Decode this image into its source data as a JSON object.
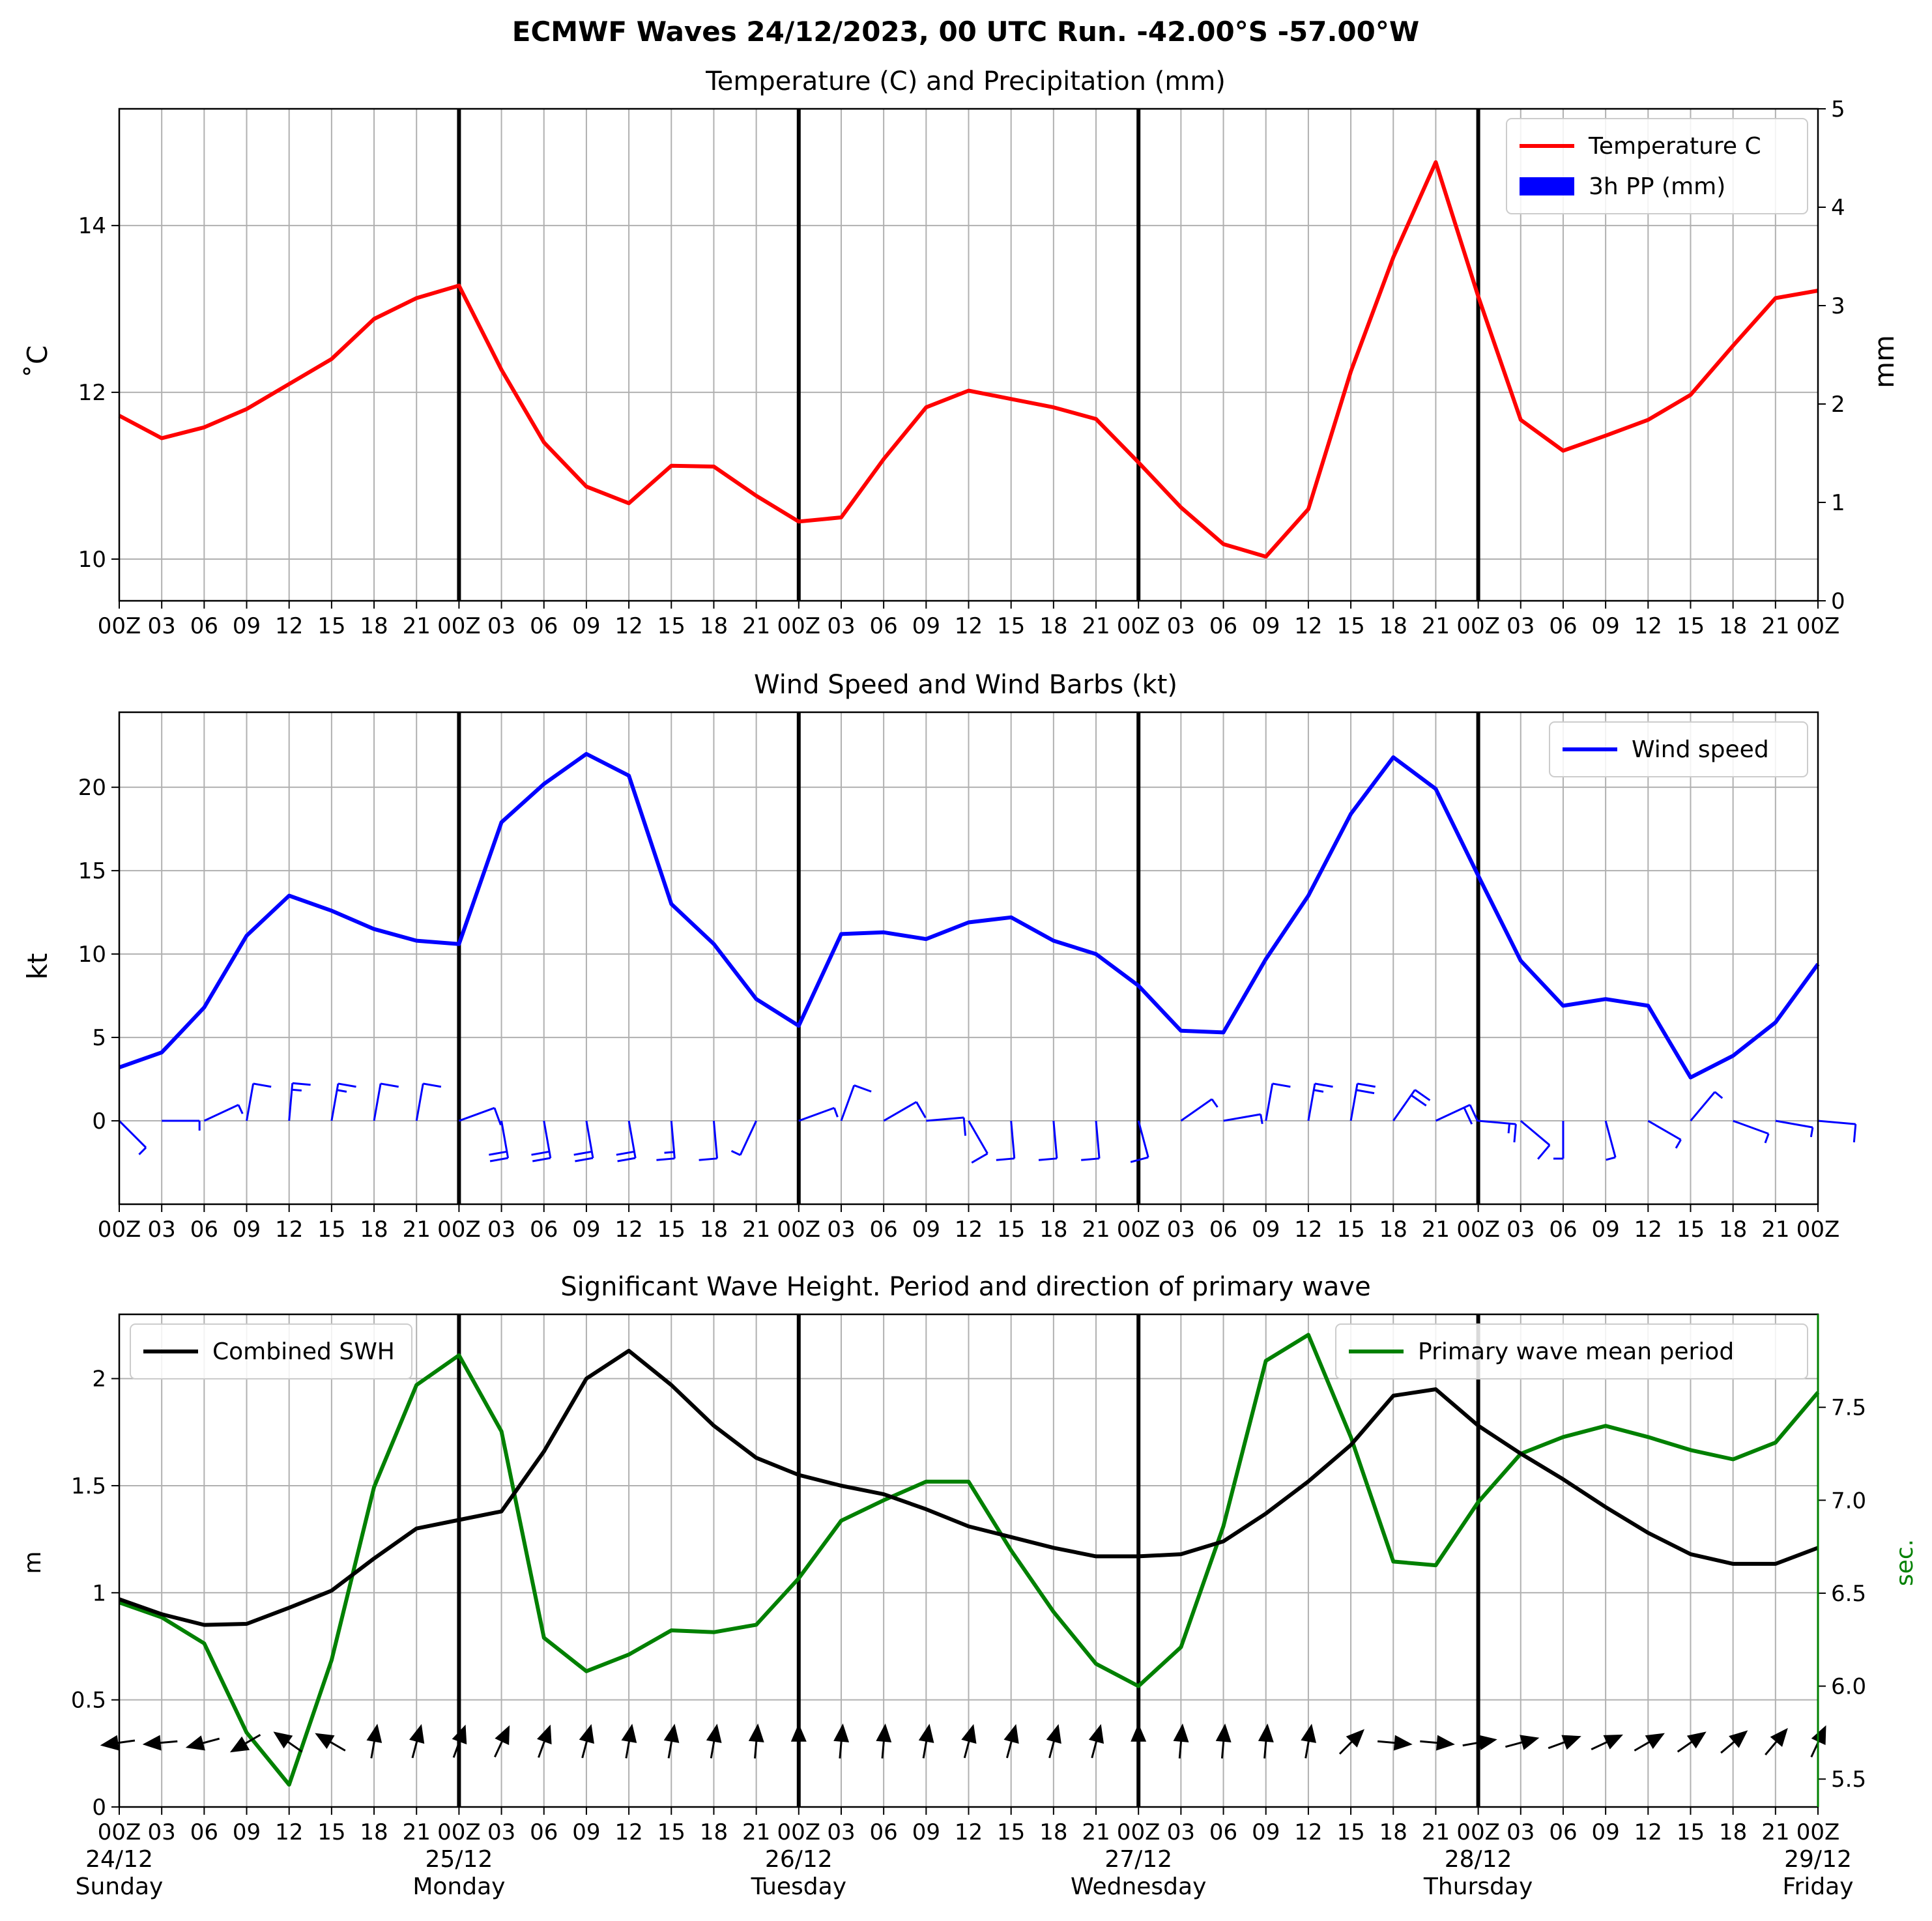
{
  "suptitle": "ECMWF Waves 24/12/2023, 00 UTC Run. -42.00°S -57.00°W",
  "time_ticks": [
    "00Z",
    "03",
    "06",
    "09",
    "12",
    "15",
    "18",
    "21",
    "00Z",
    "03",
    "06",
    "09",
    "12",
    "15",
    "18",
    "21",
    "00Z",
    "03",
    "06",
    "09",
    "12",
    "15",
    "18",
    "21",
    "00Z",
    "03",
    "06",
    "09",
    "12",
    "15",
    "18",
    "21",
    "00Z",
    "03",
    "06",
    "09",
    "12",
    "15",
    "18",
    "21",
    "00Z"
  ],
  "day_labels": [
    {
      "date": "24/12",
      "weekday": "Sunday"
    },
    {
      "date": "25/12",
      "weekday": "Monday"
    },
    {
      "date": "26/12",
      "weekday": "Tuesday"
    },
    {
      "date": "27/12",
      "weekday": "Wednesday"
    },
    {
      "date": "28/12",
      "weekday": "Thursday"
    },
    {
      "date": "29/12",
      "weekday": "Friday"
    }
  ],
  "colors": {
    "temperature": "#ff0000",
    "precip": "#0000ff",
    "wind": "#0000ff",
    "swh": "#000000",
    "period": "#008000",
    "grid": "#b0b0b0"
  },
  "chart_data": [
    {
      "type": "line",
      "title": "Temperature (C) and Precipitation (mm)",
      "ylabel": "$^\\circ$C",
      "ylabel_display": "˚C",
      "y2label": "mm",
      "ylim": [
        9.5,
        15.4
      ],
      "y2lim": [
        0,
        5
      ],
      "yticks": [
        10,
        12,
        14
      ],
      "y2ticks": [
        0,
        1,
        2,
        3,
        4,
        5
      ],
      "legend": {
        "position": "top-right",
        "entries": [
          "Temperature C",
          "3h PP (mm)"
        ]
      },
      "series": [
        {
          "name": "Temperature C",
          "values": [
            11.72,
            11.45,
            11.58,
            11.8,
            12.1,
            12.4,
            12.88,
            13.13,
            13.28,
            12.27,
            11.4,
            10.87,
            10.67,
            11.12,
            11.11,
            10.76,
            10.45,
            10.5,
            11.2,
            11.82,
            12.02,
            11.92,
            11.82,
            11.68,
            11.16,
            10.62,
            10.18,
            10.03,
            10.6,
            12.25,
            13.62,
            14.76,
            13.15,
            11.67,
            11.3,
            11.48,
            11.67,
            11.97,
            12.56,
            13.13,
            13.22
          ]
        },
        {
          "name": "3h PP (mm)",
          "values": [
            0,
            0,
            0,
            0,
            0,
            0,
            0,
            0,
            0,
            0,
            0,
            0,
            0,
            0,
            0,
            0,
            0,
            0,
            0,
            0,
            0,
            0,
            0,
            0,
            0,
            0,
            0,
            0,
            0,
            0,
            0,
            0,
            0,
            0,
            0,
            0,
            0,
            0,
            0,
            0,
            0
          ]
        }
      ]
    },
    {
      "type": "line",
      "title": "Wind Speed and Wind Barbs (kt)",
      "ylabel": "kt",
      "ylim": [
        -5,
        24.5
      ],
      "yticks": [
        0,
        5,
        10,
        15,
        20
      ],
      "legend": {
        "position": "top-right",
        "entries": [
          "Wind speed"
        ]
      },
      "series": [
        {
          "name": "Wind speed",
          "values": [
            3.2,
            4.1,
            6.8,
            11.1,
            13.5,
            12.6,
            11.5,
            10.8,
            10.6,
            17.9,
            20.2,
            22.0,
            20.7,
            13.0,
            10.6,
            7.3,
            5.7,
            11.2,
            11.3,
            10.9,
            11.9,
            12.2,
            10.8,
            10.0,
            8.1,
            5.4,
            5.3,
            9.7,
            13.5,
            18.4,
            21.8,
            19.9,
            14.7,
            9.6,
            6.9,
            7.3,
            6.9,
            2.6,
            3.9,
            5.9,
            9.4
          ]
        }
      ],
      "wind_barbs_direction_to_deg": [
        135,
        90,
        65,
        10,
        5,
        10,
        10,
        10,
        70,
        170,
        170,
        170,
        170,
        175,
        175,
        205,
        70,
        20,
        60,
        85,
        150,
        175,
        175,
        175,
        165,
        55,
        80,
        10,
        10,
        10,
        35,
        65,
        95,
        130,
        180,
        165,
        120,
        40,
        110,
        100,
        95
      ]
    },
    {
      "type": "line",
      "title": "Significant Wave Height. Period and direction of primary wave",
      "ylabel": "m",
      "y2label": "sec.",
      "ylim": [
        0,
        2.3
      ],
      "y2lim": [
        5.35,
        8.0
      ],
      "yticks": [
        0.0,
        0.5,
        1.0,
        1.5,
        2.0
      ],
      "y2ticks": [
        5.5,
        6.0,
        6.5,
        7.0,
        7.5
      ],
      "legend_left": {
        "position": "top-left",
        "entries": [
          "Combined SWH"
        ]
      },
      "legend_right": {
        "position": "top-right",
        "entries": [
          "Primary wave mean period"
        ]
      },
      "series": [
        {
          "name": "Combined SWH",
          "axis": "left",
          "values": [
            0.97,
            0.9,
            0.85,
            0.855,
            0.93,
            1.01,
            1.16,
            1.3,
            1.34,
            1.38,
            1.66,
            2.0,
            2.13,
            1.97,
            1.78,
            1.63,
            1.55,
            1.5,
            1.46,
            1.39,
            1.31,
            1.26,
            1.21,
            1.17,
            1.17,
            1.18,
            1.24,
            1.37,
            1.52,
            1.69,
            1.92,
            1.95,
            1.78,
            1.65,
            1.53,
            1.4,
            1.28,
            1.18,
            1.135,
            1.135,
            1.21
          ]
        },
        {
          "name": "Primary wave mean period",
          "axis": "right",
          "values": [
            6.45,
            6.37,
            6.23,
            5.75,
            5.47,
            6.14,
            7.07,
            7.62,
            7.78,
            7.37,
            6.26,
            6.08,
            6.17,
            6.3,
            6.29,
            6.33,
            6.58,
            6.89,
            7.0,
            7.1,
            7.1,
            6.73,
            6.4,
            6.12,
            6.0,
            6.21,
            6.86,
            7.75,
            7.89,
            7.34,
            6.67,
            6.65,
            6.99,
            7.25,
            7.34,
            7.4,
            7.34,
            7.27,
            7.22,
            7.31,
            7.58
          ]
        }
      ],
      "wave_direction_to_deg": [
        262,
        265,
        255,
        240,
        305,
        300,
        10,
        15,
        20,
        25,
        20,
        15,
        10,
        10,
        10,
        5,
        0,
        5,
        5,
        10,
        15,
        15,
        15,
        15,
        0,
        5,
        5,
        5,
        10,
        45,
        95,
        95,
        80,
        75,
        70,
        65,
        60,
        55,
        50,
        40,
        25
      ]
    }
  ]
}
